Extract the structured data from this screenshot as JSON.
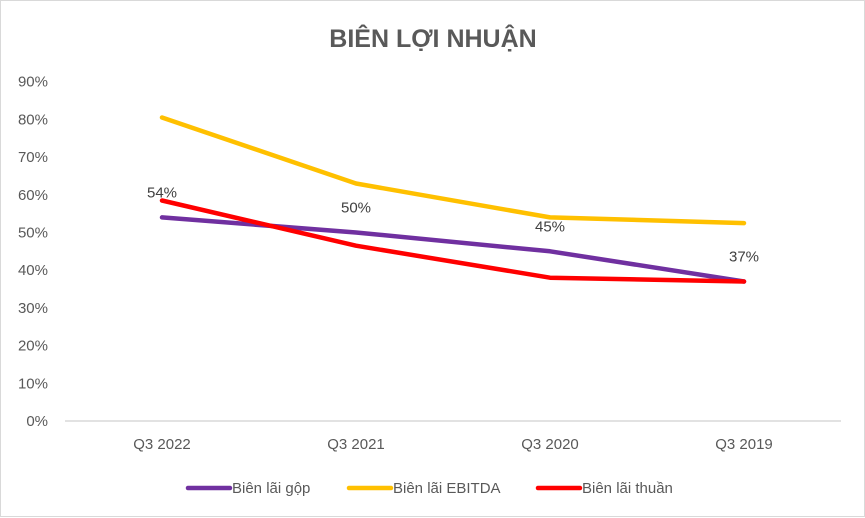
{
  "chart_data": {
    "type": "line",
    "title": "BIÊN LỢI NHUẬN",
    "xlabel": "",
    "ylabel": "",
    "categories": [
      "Q3 2022",
      "Q3 2021",
      "Q3 2020",
      "Q3 2019"
    ],
    "ylim": [
      0,
      0.9
    ],
    "yticks": [
      0,
      0.1,
      0.2,
      0.3,
      0.4,
      0.5,
      0.6,
      0.7,
      0.8,
      0.9
    ],
    "ytick_labels": [
      "0%",
      "10%",
      "20%",
      "30%",
      "40%",
      "50%",
      "60%",
      "70%",
      "80%",
      "90%"
    ],
    "grid": false,
    "legend_position": "bottom",
    "series": [
      {
        "name": "Biên lãi gộp",
        "color": "#7030a0",
        "values": [
          0.54,
          0.5,
          0.45,
          0.37
        ],
        "data_labels": [
          "54%",
          "50%",
          "45%",
          "37%"
        ]
      },
      {
        "name": "Biên lãi EBITDA",
        "color": "#ffc000",
        "values": [
          0.805,
          0.63,
          0.54,
          0.525
        ],
        "data_labels": []
      },
      {
        "name": "Biên lãi thuần",
        "color": "#ff0000",
        "values": [
          0.585,
          0.465,
          0.38,
          0.37
        ],
        "data_labels": []
      }
    ]
  }
}
